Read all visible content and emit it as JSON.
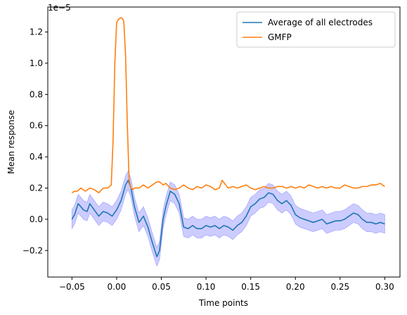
{
  "chart_data": {
    "type": "line",
    "xlabel": "Time points",
    "ylabel": "Mean response",
    "offset_text": "1e−5",
    "xlim": [
      -0.077,
      0.317
    ],
    "ylim": [
      -0.37,
      1.36
    ],
    "xticks": [
      -0.05,
      0.0,
      0.05,
      0.1,
      0.15,
      0.2,
      0.25,
      0.3
    ],
    "xtick_labels": [
      "−0.05",
      "0.00",
      "0.05",
      "0.10",
      "0.15",
      "0.20",
      "0.25",
      "0.30"
    ],
    "yticks": [
      -0.2,
      0.0,
      0.2,
      0.4,
      0.6,
      0.8,
      1.0,
      1.2
    ],
    "ytick_labels": [
      "−0.2",
      "0.0",
      "0.2",
      "0.4",
      "0.6",
      "0.8",
      "1.0",
      "1.2"
    ],
    "legend_position": "top-right",
    "grid": false,
    "series": [
      {
        "name": "Average of all electrodes",
        "color": "#1f77b4",
        "band_color": "#0000ff",
        "band_halfwidth": 0.06,
        "x": [
          -0.05,
          -0.047,
          -0.043,
          -0.04,
          -0.037,
          -0.033,
          -0.03,
          -0.025,
          -0.02,
          -0.015,
          -0.01,
          -0.005,
          0.0,
          0.005,
          0.01,
          0.013,
          0.016,
          0.02,
          0.025,
          0.03,
          0.035,
          0.04,
          0.045,
          0.048,
          0.052,
          0.055,
          0.06,
          0.065,
          0.07,
          0.075,
          0.08,
          0.085,
          0.09,
          0.095,
          0.1,
          0.105,
          0.11,
          0.115,
          0.12,
          0.125,
          0.13,
          0.135,
          0.14,
          0.145,
          0.15,
          0.155,
          0.16,
          0.165,
          0.17,
          0.175,
          0.18,
          0.185,
          0.19,
          0.195,
          0.2,
          0.205,
          0.21,
          0.215,
          0.22,
          0.225,
          0.23,
          0.235,
          0.24,
          0.245,
          0.25,
          0.255,
          0.26,
          0.265,
          0.27,
          0.275,
          0.28,
          0.285,
          0.29,
          0.295,
          0.3
        ],
        "values": [
          0.0,
          0.03,
          0.1,
          0.08,
          0.06,
          0.05,
          0.1,
          0.06,
          0.02,
          0.05,
          0.04,
          0.02,
          0.06,
          0.12,
          0.22,
          0.25,
          0.2,
          0.08,
          -0.02,
          0.02,
          -0.05,
          -0.15,
          -0.24,
          -0.2,
          0.0,
          0.08,
          0.18,
          0.16,
          0.1,
          -0.05,
          -0.06,
          -0.04,
          -0.06,
          -0.06,
          -0.04,
          -0.05,
          -0.04,
          -0.06,
          -0.04,
          -0.05,
          -0.07,
          -0.04,
          -0.02,
          0.02,
          0.08,
          0.1,
          0.13,
          0.14,
          0.17,
          0.16,
          0.12,
          0.1,
          0.12,
          0.09,
          0.03,
          0.01,
          0.0,
          -0.01,
          -0.02,
          -0.01,
          0.0,
          -0.03,
          -0.02,
          -0.01,
          -0.01,
          0.0,
          0.02,
          0.04,
          0.03,
          0.0,
          -0.02,
          -0.02,
          -0.03,
          -0.02,
          -0.03
        ]
      },
      {
        "name": "GMFP",
        "color": "#ff7f0e",
        "x": [
          -0.05,
          -0.047,
          -0.044,
          -0.04,
          -0.035,
          -0.03,
          -0.025,
          -0.02,
          -0.015,
          -0.01,
          -0.006,
          -0.004,
          -0.002,
          0.0,
          0.002,
          0.004,
          0.006,
          0.008,
          0.01,
          0.012,
          0.014,
          0.016,
          0.018,
          0.02,
          0.025,
          0.03,
          0.035,
          0.04,
          0.045,
          0.048,
          0.052,
          0.055,
          0.06,
          0.065,
          0.07,
          0.075,
          0.08,
          0.085,
          0.09,
          0.095,
          0.1,
          0.105,
          0.11,
          0.115,
          0.118,
          0.122,
          0.125,
          0.13,
          0.135,
          0.14,
          0.145,
          0.15,
          0.155,
          0.16,
          0.165,
          0.17,
          0.175,
          0.18,
          0.185,
          0.19,
          0.195,
          0.2,
          0.205,
          0.21,
          0.215,
          0.22,
          0.225,
          0.23,
          0.235,
          0.24,
          0.245,
          0.25,
          0.255,
          0.26,
          0.265,
          0.27,
          0.275,
          0.28,
          0.285,
          0.29,
          0.295,
          0.3
        ],
        "values": [
          0.17,
          0.18,
          0.18,
          0.2,
          0.18,
          0.2,
          0.19,
          0.17,
          0.2,
          0.2,
          0.22,
          0.5,
          1.0,
          1.26,
          1.28,
          1.29,
          1.29,
          1.27,
          1.05,
          0.6,
          0.25,
          0.2,
          0.19,
          0.2,
          0.2,
          0.22,
          0.2,
          0.22,
          0.24,
          0.24,
          0.22,
          0.23,
          0.2,
          0.19,
          0.2,
          0.22,
          0.2,
          0.19,
          0.21,
          0.2,
          0.22,
          0.21,
          0.19,
          0.2,
          0.25,
          0.22,
          0.2,
          0.21,
          0.2,
          0.21,
          0.22,
          0.2,
          0.19,
          0.2,
          0.21,
          0.2,
          0.2,
          0.21,
          0.21,
          0.2,
          0.21,
          0.2,
          0.21,
          0.2,
          0.22,
          0.21,
          0.2,
          0.21,
          0.2,
          0.21,
          0.2,
          0.2,
          0.22,
          0.21,
          0.2,
          0.2,
          0.21,
          0.21,
          0.22,
          0.22,
          0.23,
          0.21
        ]
      }
    ]
  }
}
